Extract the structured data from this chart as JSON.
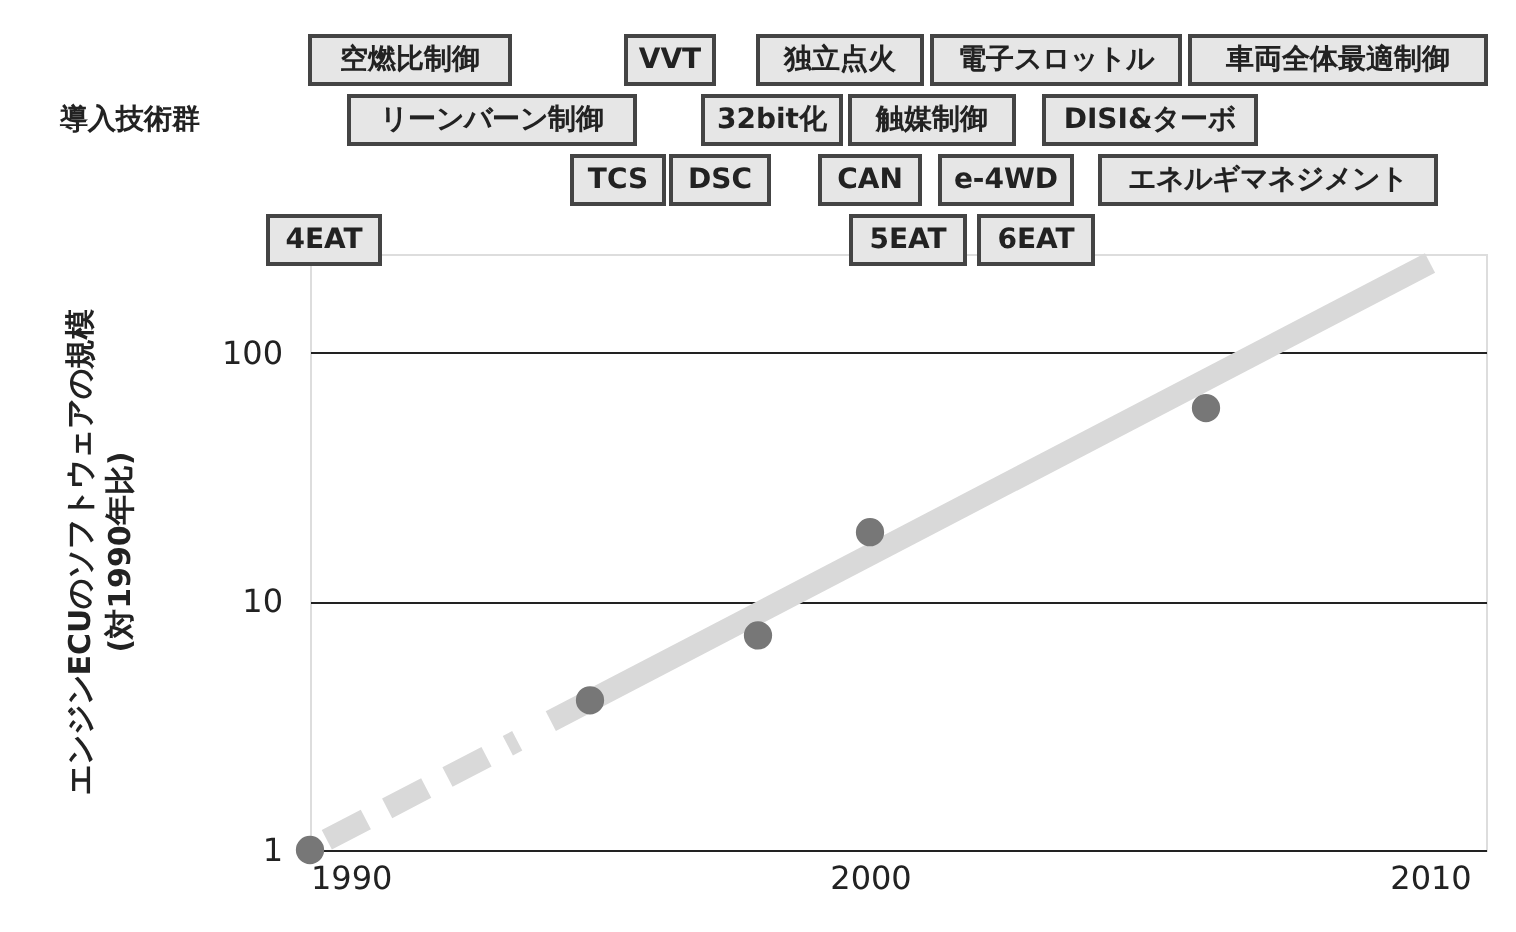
{
  "chart_data": {
    "type": "scatter",
    "ylabel": "エンジンECUのソフトウェアの規模\n(対1990年比)",
    "annotations": [
      "導入技術群",
      "空燃比制御",
      "VVT",
      "独立点火",
      "電子スロットル",
      "車両全体最適制御",
      "リーンバーン制御",
      "32bit化",
      "触媒制御",
      "DISI&ターボ",
      "TCS",
      "DSC",
      "CAN",
      "e-4WD",
      "エネルギマネジメント",
      "4EAT",
      "5EAT",
      "6EAT"
    ],
    "series": [
      {
        "type": "line",
        "color": "#d9d9d9",
        "line_style": "dashed",
        "marker": "none",
        "x": [
          1990.3,
          1993.7
        ],
        "values": [
          1.1,
          2.75
        ]
      },
      {
        "type": "line",
        "color": "#d9d9d9",
        "line_style": "solid",
        "marker": "none",
        "x": [
          1994.3,
          2010
        ],
        "values": [
          3.3,
          230
        ]
      },
      {
        "color": "#777777",
        "marker": "circle",
        "x": [
          1990,
          1995,
          1998,
          2000,
          2006
        ],
        "values": [
          1,
          4,
          7.3,
          19,
          60
        ]
      }
    ],
    "xlim": [
      1990,
      2011
    ],
    "xticks": [
      1990,
      2000,
      2010
    ],
    "ylim": [
      1,
      250
    ],
    "yticks": [
      1,
      10,
      100
    ],
    "log": "y",
    "grid": "y"
  }
}
